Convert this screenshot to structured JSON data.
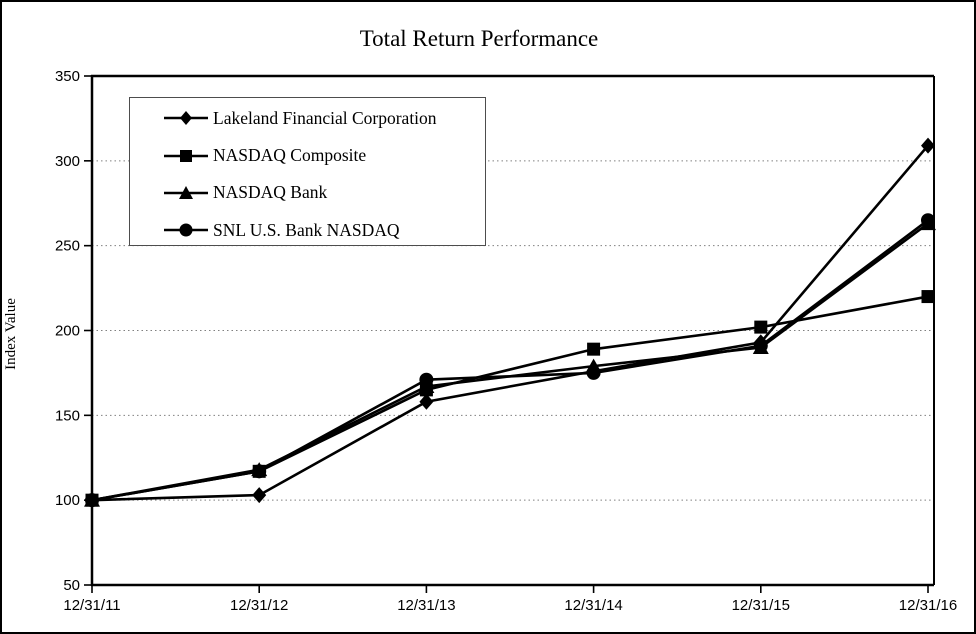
{
  "chart_data": {
    "type": "line",
    "title": "Total Return Performance",
    "xlabel": "",
    "ylabel": "Index Value",
    "categories": [
      "12/31/11",
      "12/31/12",
      "12/31/13",
      "12/31/14",
      "12/31/15",
      "12/31/16"
    ],
    "series": [
      {
        "name": "Lakeland Financial Corporation",
        "marker": "diamond",
        "values": [
          100,
          103,
          158,
          176,
          193,
          309
        ]
      },
      {
        "name": "NASDAQ Composite",
        "marker": "square",
        "values": [
          100,
          117,
          165,
          189,
          202,
          220
        ]
      },
      {
        "name": "NASDAQ Bank",
        "marker": "triangle",
        "values": [
          100,
          118,
          167,
          179,
          190,
          263
        ]
      },
      {
        "name": "SNL U.S. Bank NASDAQ",
        "marker": "circle",
        "values": [
          100,
          117,
          171,
          175,
          191,
          265
        ]
      }
    ],
    "ylim": [
      50,
      350
    ],
    "y_tick_step": 50,
    "grid": "horizontal-dotted",
    "legend_position": "top-left-inside",
    "colors": {
      "series": "#000000",
      "grid": "#808080",
      "axis": "#000000",
      "background": "#ffffff",
      "legend_border": "#4d4d4d"
    }
  }
}
